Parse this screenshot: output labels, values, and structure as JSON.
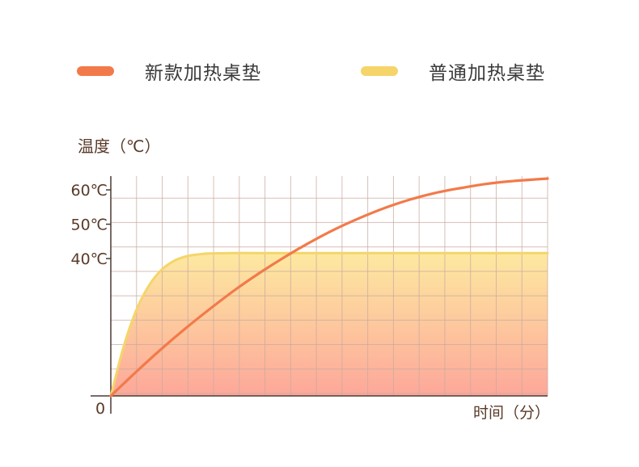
{
  "legend": {
    "new_label": "新款加热桌垫",
    "normal_label": "普通加热桌垫"
  },
  "colors": {
    "new_series": "#f27a4a",
    "normal_series": "#f5d56a",
    "grid": "#c9aaa0",
    "axis": "#4a3a32",
    "fill_top": "#fde9a0",
    "fill_bottom": "#fda79a"
  },
  "chart_data": {
    "type": "line",
    "ylabel": "温度（℃）",
    "xlabel": "时间（分）",
    "origin_label": "0",
    "yticks": [
      {
        "value": 40,
        "label": "40℃"
      },
      {
        "value": 50,
        "label": "50℃"
      },
      {
        "value": 60,
        "label": "60℃"
      }
    ],
    "ylim": [
      0,
      64
    ],
    "xlim": [
      0,
      17.5
    ],
    "grid": true,
    "legend_position": "top",
    "series": [
      {
        "name": "新款加热桌垫",
        "x": [
          0,
          1,
          2,
          3,
          4,
          5,
          6,
          7,
          8,
          9,
          10,
          11,
          12,
          13,
          14,
          15,
          16,
          17.5
        ],
        "values": [
          0,
          6.9,
          13.5,
          19.7,
          25.5,
          31.0,
          36.0,
          40.6,
          44.8,
          48.6,
          51.9,
          54.8,
          57.2,
          59.1,
          60.5,
          61.7,
          62.5,
          63.3
        ],
        "color": "#f27a4a",
        "filled": false
      },
      {
        "name": "普通加热桌垫",
        "x": [
          0,
          0.5,
          1,
          1.5,
          2,
          2.5,
          3,
          3.5,
          4,
          5,
          6,
          8,
          10,
          12,
          14,
          17.5
        ],
        "values": [
          0,
          14,
          24.6,
          31.8,
          36.5,
          39.2,
          40.6,
          41.2,
          41.5,
          41.6,
          41.6,
          41.6,
          41.6,
          41.6,
          41.6,
          41.6
        ],
        "color": "#f5d56a",
        "filled": true
      }
    ]
  }
}
